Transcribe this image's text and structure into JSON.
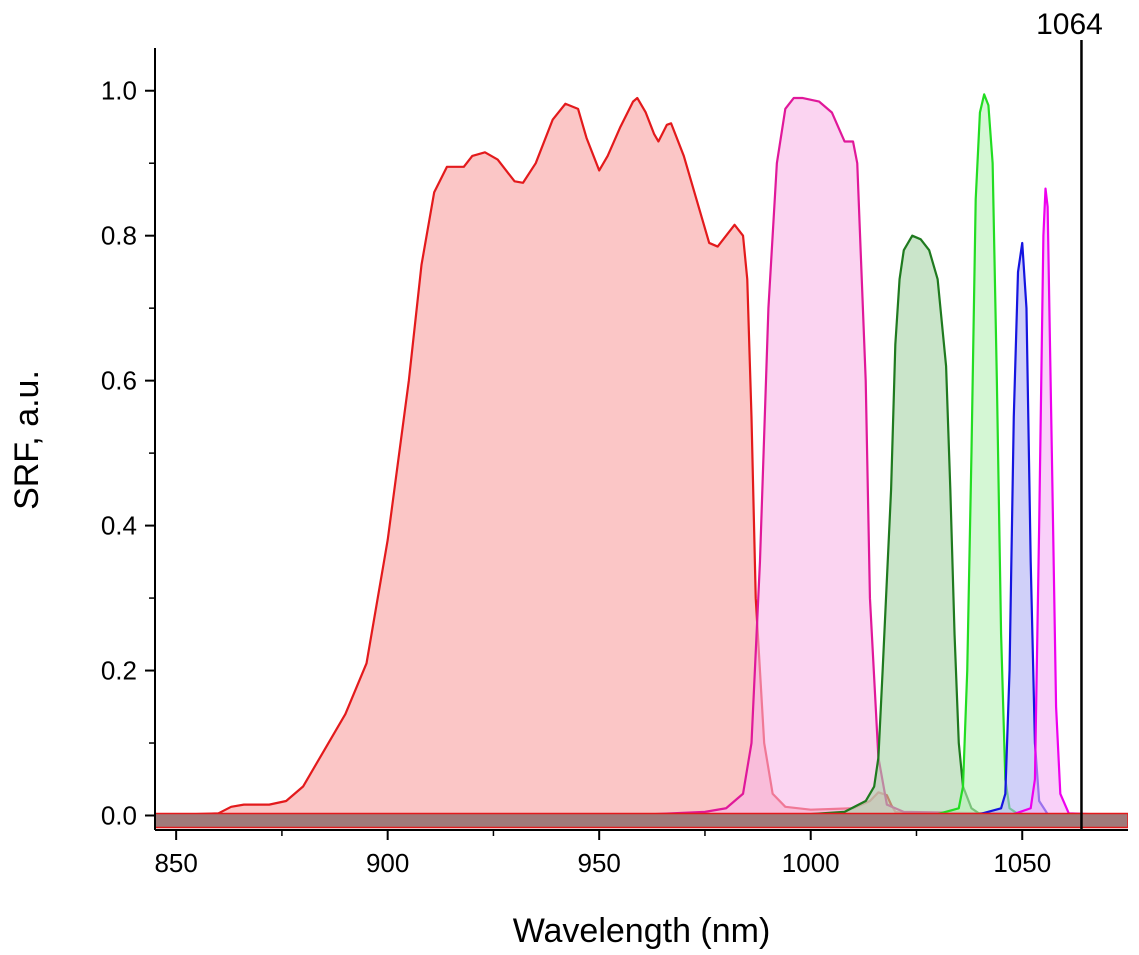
{
  "chart_data": {
    "type": "area",
    "title": "",
    "xlabel": "Wavelength (nm)",
    "ylabel": "SRF, a.u.",
    "xlim": [
      845,
      1075
    ],
    "ylim": [
      -0.02,
      1.07
    ],
    "xticks": [
      850,
      900,
      950,
      1000,
      1050
    ],
    "xtick_labels": [
      "850",
      "900",
      "950",
      "1000",
      "1050"
    ],
    "yticks": [
      0.0,
      0.2,
      0.4,
      0.6,
      0.8,
      1.0
    ],
    "ytick_labels": [
      "0.0",
      "0.2",
      "0.4",
      "0.6",
      "0.8",
      "1.0"
    ],
    "grid": false,
    "reference_line": {
      "x": 1064,
      "label": "1064",
      "color": "#000000"
    },
    "series": [
      {
        "stroke": "#e31a1c",
        "fill": "#f8a0a0",
        "points": [
          [
            845,
            0
          ],
          [
            860,
            0.003
          ],
          [
            863,
            0.012
          ],
          [
            866,
            0.015
          ],
          [
            872,
            0.015
          ],
          [
            876,
            0.02
          ],
          [
            880,
            0.04
          ],
          [
            885,
            0.09
          ],
          [
            890,
            0.14
          ],
          [
            895,
            0.21
          ],
          [
            900,
            0.38
          ],
          [
            905,
            0.6
          ],
          [
            908,
            0.76
          ],
          [
            911,
            0.86
          ],
          [
            914,
            0.895
          ],
          [
            918,
            0.895
          ],
          [
            920,
            0.91
          ],
          [
            923,
            0.915
          ],
          [
            926,
            0.905
          ],
          [
            930,
            0.875
          ],
          [
            932,
            0.873
          ],
          [
            935,
            0.9
          ],
          [
            939,
            0.96
          ],
          [
            942,
            0.982
          ],
          [
            945,
            0.975
          ],
          [
            947,
            0.935
          ],
          [
            950,
            0.89
          ],
          [
            952,
            0.91
          ],
          [
            955,
            0.95
          ],
          [
            958,
            0.985
          ],
          [
            959,
            0.99
          ],
          [
            961,
            0.97
          ],
          [
            963,
            0.94
          ],
          [
            964,
            0.93
          ],
          [
            966,
            0.953
          ],
          [
            967,
            0.955
          ],
          [
            970,
            0.91
          ],
          [
            973,
            0.85
          ],
          [
            976,
            0.79
          ],
          [
            978,
            0.785
          ],
          [
            980,
            0.8
          ],
          [
            982,
            0.815
          ],
          [
            984,
            0.8
          ],
          [
            985,
            0.74
          ],
          [
            986,
            0.55
          ],
          [
            987,
            0.3
          ],
          [
            989,
            0.1
          ],
          [
            991,
            0.03
          ],
          [
            994,
            0.012
          ],
          [
            1000,
            0.008
          ],
          [
            1010,
            0.01
          ],
          [
            1014,
            0.02
          ],
          [
            1016,
            0.032
          ],
          [
            1018,
            0.028
          ],
          [
            1019,
            0.015
          ],
          [
            1020,
            0.005
          ],
          [
            1024,
            0.002
          ],
          [
            1075,
            0
          ]
        ]
      },
      {
        "stroke": "#e0189a",
        "fill": "#f9b8e8",
        "points": [
          [
            845,
            0
          ],
          [
            960,
            0.001
          ],
          [
            975,
            0.005
          ],
          [
            980,
            0.01
          ],
          [
            984,
            0.03
          ],
          [
            986,
            0.1
          ],
          [
            988,
            0.35
          ],
          [
            990,
            0.7
          ],
          [
            992,
            0.9
          ],
          [
            994,
            0.975
          ],
          [
            996,
            0.99
          ],
          [
            998,
            0.99
          ],
          [
            1002,
            0.985
          ],
          [
            1005,
            0.97
          ],
          [
            1008,
            0.93
          ],
          [
            1010,
            0.93
          ],
          [
            1011,
            0.9
          ],
          [
            1013,
            0.6
          ],
          [
            1014,
            0.3
          ],
          [
            1016,
            0.08
          ],
          [
            1018,
            0.015
          ],
          [
            1022,
            0.005
          ],
          [
            1075,
            0
          ]
        ]
      },
      {
        "stroke": "#1f7a1f",
        "fill": "#a6d4a6",
        "points": [
          [
            845,
            0
          ],
          [
            1000,
            0.002
          ],
          [
            1008,
            0.005
          ],
          [
            1013,
            0.02
          ],
          [
            1015,
            0.04
          ],
          [
            1016,
            0.08
          ],
          [
            1017,
            0.2
          ],
          [
            1019,
            0.45
          ],
          [
            1020,
            0.65
          ],
          [
            1021,
            0.74
          ],
          [
            1022,
            0.78
          ],
          [
            1024,
            0.8
          ],
          [
            1026,
            0.795
          ],
          [
            1028,
            0.78
          ],
          [
            1030,
            0.74
          ],
          [
            1032,
            0.62
          ],
          [
            1033,
            0.45
          ],
          [
            1034,
            0.25
          ],
          [
            1035,
            0.1
          ],
          [
            1036,
            0.04
          ],
          [
            1038,
            0.01
          ],
          [
            1040,
            0.002
          ],
          [
            1075,
            0
          ]
        ]
      },
      {
        "stroke": "#22dd22",
        "fill": "#b8f2b8",
        "points": [
          [
            845,
            0
          ],
          [
            1030,
            0.002
          ],
          [
            1035,
            0.01
          ],
          [
            1036,
            0.04
          ],
          [
            1037,
            0.2
          ],
          [
            1038,
            0.5
          ],
          [
            1039,
            0.85
          ],
          [
            1040,
            0.97
          ],
          [
            1041,
            0.995
          ],
          [
            1042,
            0.98
          ],
          [
            1043,
            0.9
          ],
          [
            1044,
            0.6
          ],
          [
            1045,
            0.25
          ],
          [
            1046,
            0.05
          ],
          [
            1047,
            0.01
          ],
          [
            1049,
            0.002
          ],
          [
            1075,
            0
          ]
        ]
      },
      {
        "stroke": "#1515e0",
        "fill": "#b0b0f5",
        "points": [
          [
            845,
            0
          ],
          [
            1040,
            0.002
          ],
          [
            1045,
            0.01
          ],
          [
            1046,
            0.03
          ],
          [
            1047,
            0.2
          ],
          [
            1048,
            0.55
          ],
          [
            1049,
            0.75
          ],
          [
            1050,
            0.79
          ],
          [
            1051,
            0.7
          ],
          [
            1052,
            0.35
          ],
          [
            1053,
            0.1
          ],
          [
            1054,
            0.02
          ],
          [
            1056,
            0.002
          ],
          [
            1075,
            0
          ]
        ]
      },
      {
        "stroke": "#ee00ee",
        "fill": "#f5b0f5",
        "points": [
          [
            845,
            0
          ],
          [
            1048,
            0.002
          ],
          [
            1052,
            0.01
          ],
          [
            1053,
            0.05
          ],
          [
            1054,
            0.4
          ],
          [
            1055,
            0.8
          ],
          [
            1055.5,
            0.865
          ],
          [
            1056,
            0.84
          ],
          [
            1057,
            0.5
          ],
          [
            1058,
            0.15
          ],
          [
            1059,
            0.03
          ],
          [
            1061,
            0.003
          ],
          [
            1075,
            0
          ]
        ]
      }
    ]
  }
}
